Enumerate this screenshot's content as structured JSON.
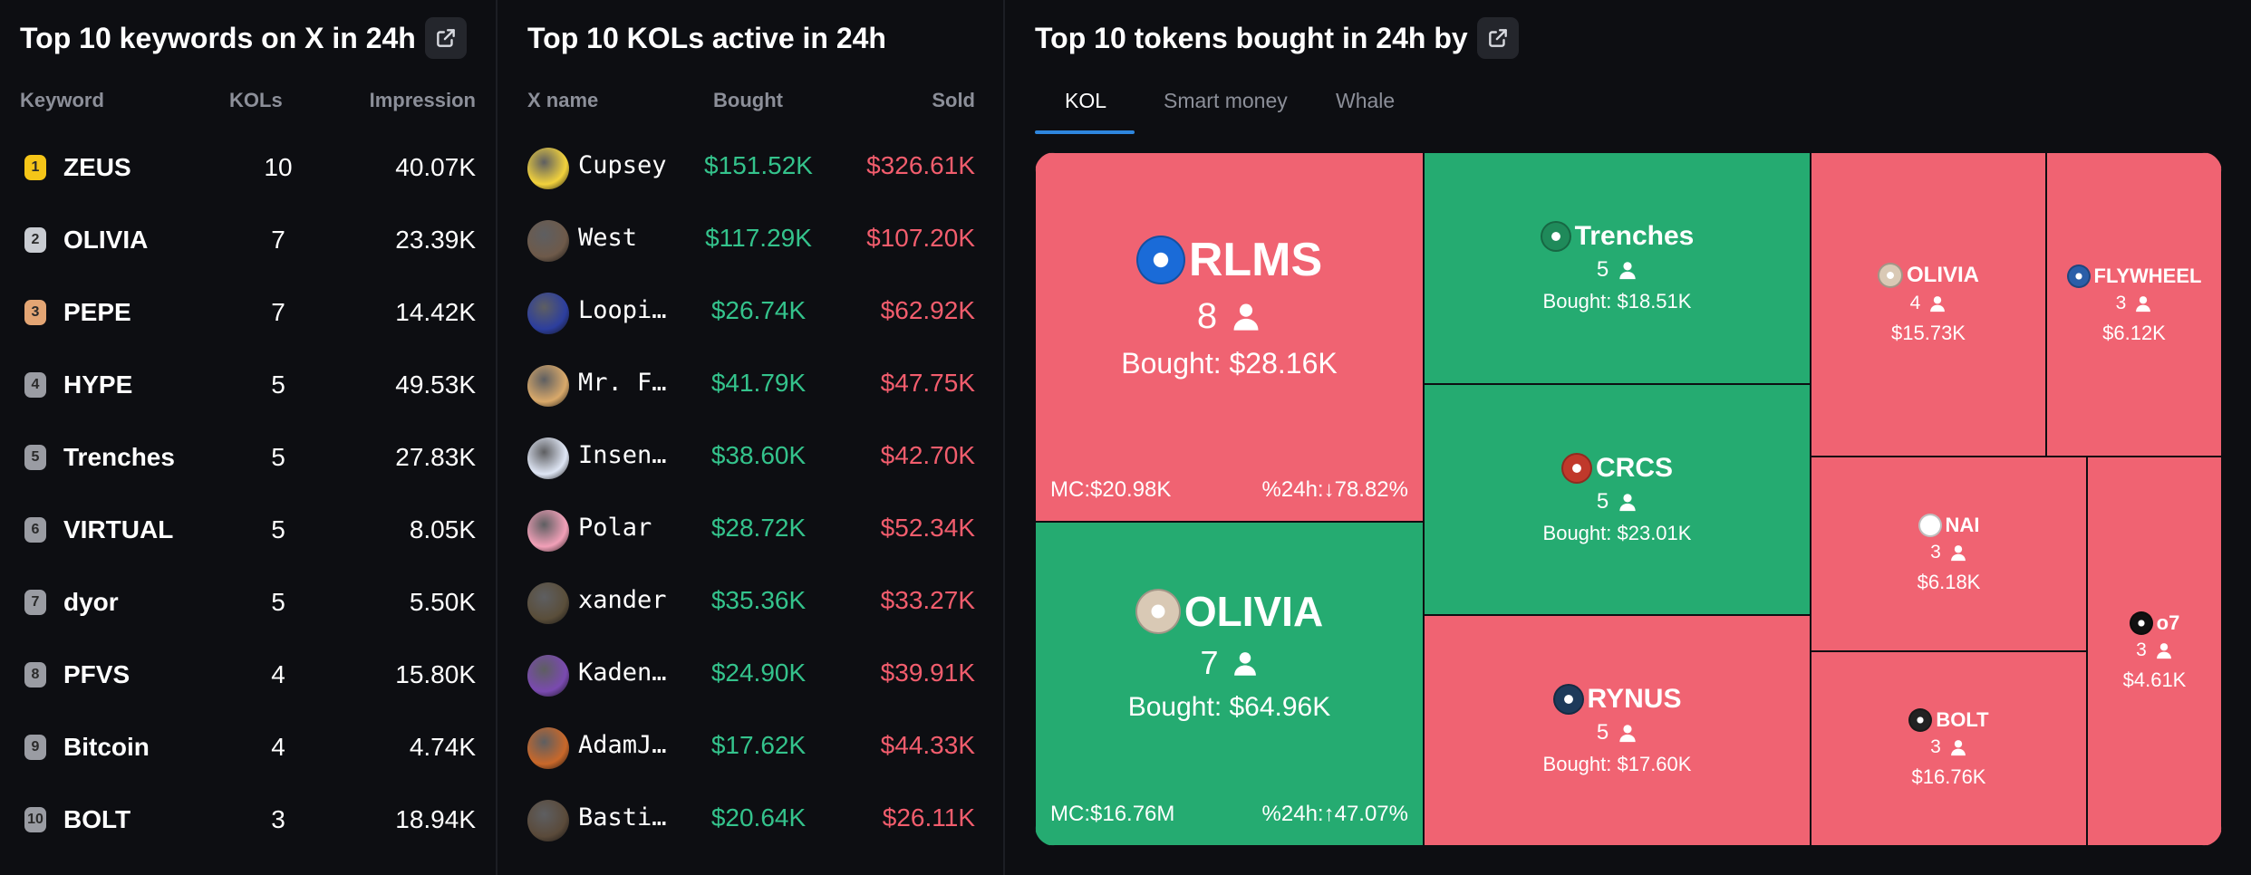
{
  "keywords_panel": {
    "title": "Top 10 keywords on X in 24h",
    "columns": {
      "keyword": "Keyword",
      "kols": "KOLs",
      "impression": "Impression"
    },
    "rows": [
      {
        "rank": "1",
        "keyword": "ZEUS",
        "kols": "10",
        "impression": "40.07K",
        "badge_color": "#f5c518"
      },
      {
        "rank": "2",
        "keyword": "OLIVIA",
        "kols": "7",
        "impression": "23.39K",
        "badge_color": "#c9ccd2"
      },
      {
        "rank": "3",
        "keyword": "PEPE",
        "kols": "7",
        "impression": "14.42K",
        "badge_color": "#e3a574"
      },
      {
        "rank": "4",
        "keyword": "HYPE",
        "kols": "5",
        "impression": "49.53K",
        "badge_color": "#9a9ca3"
      },
      {
        "rank": "5",
        "keyword": "Trenches",
        "kols": "5",
        "impression": "27.83K",
        "badge_color": "#9a9ca3"
      },
      {
        "rank": "6",
        "keyword": "VIRTUAL",
        "kols": "5",
        "impression": "8.05K",
        "badge_color": "#9a9ca3"
      },
      {
        "rank": "7",
        "keyword": "dyor",
        "kols": "5",
        "impression": "5.50K",
        "badge_color": "#9a9ca3"
      },
      {
        "rank": "8",
        "keyword": "PFVS",
        "kols": "4",
        "impression": "15.80K",
        "badge_color": "#9a9ca3"
      },
      {
        "rank": "9",
        "keyword": "Bitcoin",
        "kols": "4",
        "impression": "4.74K",
        "badge_color": "#9a9ca3"
      },
      {
        "rank": "10",
        "keyword": "BOLT",
        "kols": "3",
        "impression": "18.94K",
        "badge_color": "#9a9ca3"
      }
    ]
  },
  "kols_panel": {
    "title": "Top 10 KOLs active in 24h",
    "columns": {
      "name": "X name",
      "bought": "Bought",
      "sold": "Sold"
    },
    "rows": [
      {
        "name": "Cupsey",
        "bought": "$151.52K",
        "sold": "$326.61K",
        "avatar_color": "#f2d23c"
      },
      {
        "name": "West",
        "bought": "$117.29K",
        "sold": "$107.20K",
        "avatar_color": "#6e5a4a"
      },
      {
        "name": "Loopi…",
        "bought": "$26.74K",
        "sold": "$62.92K",
        "avatar_color": "#2c3e9e"
      },
      {
        "name": "Mr. F…",
        "bought": "$41.79K",
        "sold": "$47.75K",
        "avatar_color": "#d9a96a"
      },
      {
        "name": "Insen…",
        "bought": "$38.60K",
        "sold": "$42.70K",
        "avatar_color": "#dfe6f5"
      },
      {
        "name": "Polar",
        "bought": "$28.72K",
        "sold": "$52.34K",
        "avatar_color": "#f2a0b8"
      },
      {
        "name": "xander",
        "bought": "$35.36K",
        "sold": "$33.27K",
        "avatar_color": "#5a4e3a"
      },
      {
        "name": "Kaden…",
        "bought": "$24.90K",
        "sold": "$39.91K",
        "avatar_color": "#7a4ab0"
      },
      {
        "name": "AdamJ…",
        "bought": "$17.62K",
        "sold": "$44.33K",
        "avatar_color": "#c9682a"
      },
      {
        "name": "Basti…",
        "bought": "$20.64K",
        "sold": "$26.11K",
        "avatar_color": "#5a4a3a"
      }
    ]
  },
  "tokens_panel": {
    "title": "Top 10 tokens bought in 24h by",
    "tabs": [
      "KOL",
      "Smart money",
      "Whale"
    ],
    "active_tab": "KOL",
    "tiles": [
      {
        "name": "RLMS",
        "count": "8",
        "bought": "Bought: $28.16K",
        "mc": "MC:$20.98K",
        "change": "%24h:↓78.82%",
        "status": "red",
        "icon_color": "#1a6bd8"
      },
      {
        "name": "OLIVIA",
        "count": "7",
        "bought": "Bought: $64.96K",
        "mc": "MC:$16.76M",
        "change": "%24h:↑47.07%",
        "status": "green",
        "icon_color": "#d9c9b5"
      },
      {
        "name": "Trenches",
        "count": "5",
        "bought": "Bought: $18.51K",
        "status": "green",
        "icon_color": "#1f8a5a"
      },
      {
        "name": "CRCS",
        "count": "5",
        "bought": "Bought: $23.01K",
        "status": "green",
        "icon_color": "#c0392b"
      },
      {
        "name": "RYNUS",
        "count": "5",
        "bought": "Bought: $17.60K",
        "status": "red",
        "icon_color": "#1d3a5a"
      },
      {
        "name": "OLIVIA",
        "count": "4",
        "bought": "$15.73K",
        "status": "red",
        "icon_color": "#d9c9b5"
      },
      {
        "name": "FLYWHEEL",
        "count": "3",
        "bought": "$6.12K",
        "status": "red",
        "icon_color": "#2a5ea8"
      },
      {
        "name": "NAI",
        "count": "3",
        "bought": "$6.18K",
        "status": "red",
        "icon_color": "#ffffff"
      },
      {
        "name": "BOLT",
        "count": "3",
        "bought": "$16.76K",
        "status": "red",
        "icon_color": "#222222"
      },
      {
        "name": "o7",
        "count": "3",
        "bought": "$4.61K",
        "status": "red",
        "icon_color": "#111111"
      }
    ]
  },
  "colors": {
    "red": "#f06372",
    "green": "#25ab71",
    "accent": "#2e86de",
    "profit": "#34c38c",
    "loss": "#f25d6d"
  },
  "icons": {
    "external": "external-link-icon",
    "user": "person-icon"
  }
}
